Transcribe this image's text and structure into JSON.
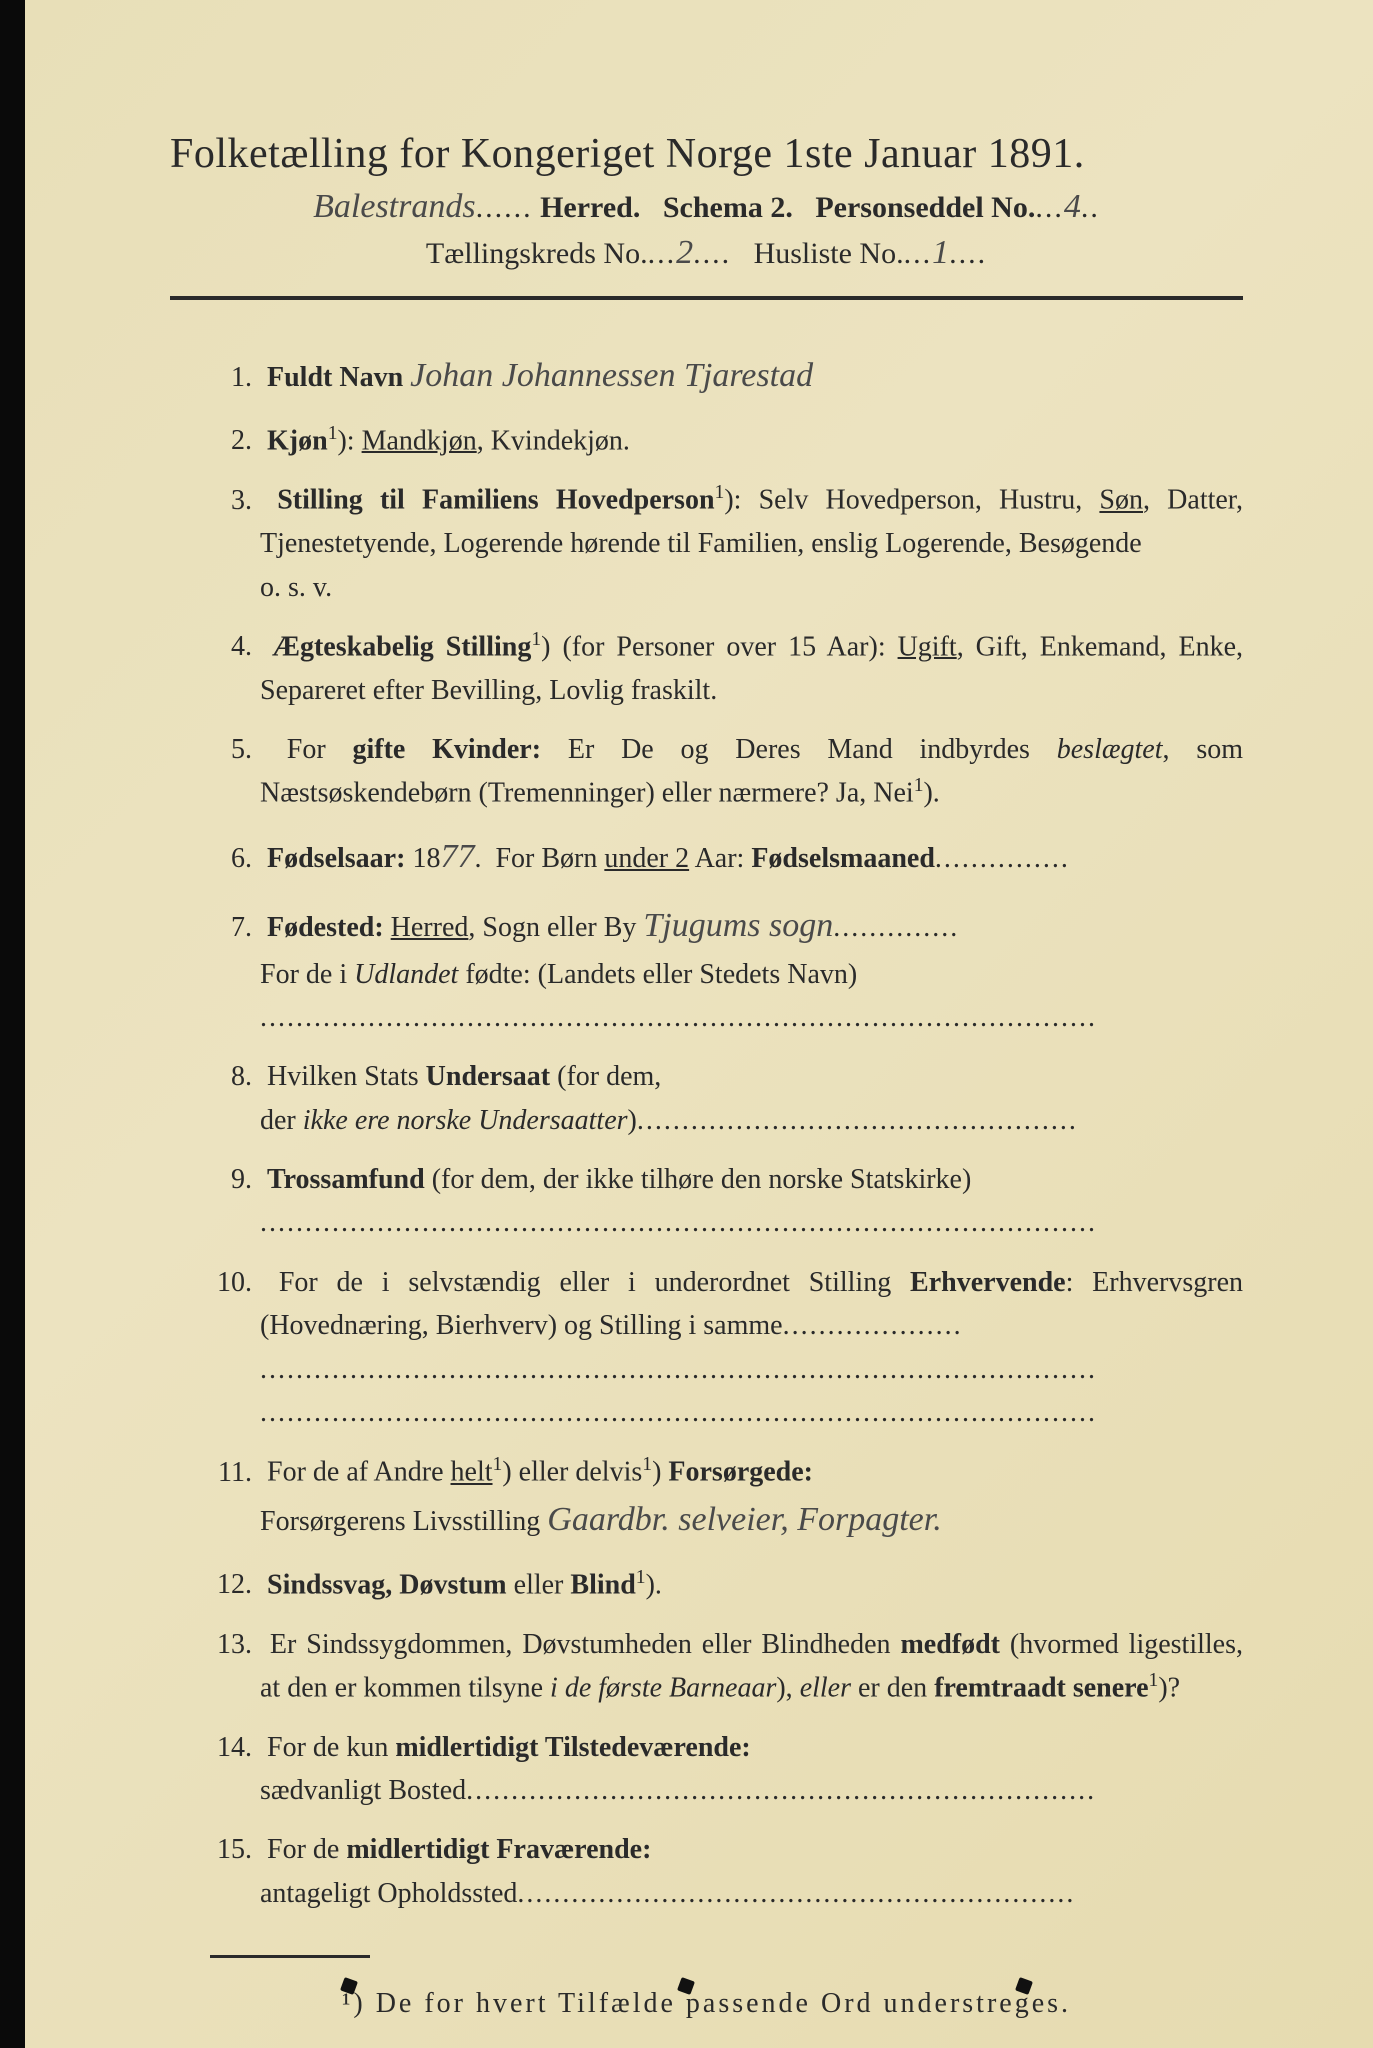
{
  "colors": {
    "paper": "#ece3c0",
    "ink": "#2a2a2a",
    "handwriting": "#4a4a4a",
    "edge": "#0a0a0a"
  },
  "header": {
    "title": "Folketælling for Kongeriget Norge 1ste Januar 1891.",
    "herred_handwritten": "Balestrands",
    "herred_label": "Herred.",
    "schema": "Schema 2.",
    "person_label": "Personseddel No.",
    "person_no": "4",
    "kreds_label": "Tællingskreds No.",
    "kreds_no": "2",
    "husliste_label": "Husliste No.",
    "husliste_no": "1"
  },
  "items": [
    {
      "n": "1.",
      "html": "<b>Fuldt Navn</b> <span class='cursive'>Johan Johannessen Tjarestad</span>"
    },
    {
      "n": "2.",
      "html": "<b>Kjøn</b><span class='sup'>1</span>): <span class='u'>Mandkjøn</span>, Kvindekjøn."
    },
    {
      "n": "3.",
      "html": "<b>Stilling til Familiens Hovedperson</b><span class='sup'>1</span>): Selv Hovedperson, Hustru, <span class='u'>Søn</span>, Datter, Tjenestetyende, Logerende hørende til Familien, enslig Logerende, Besøgende<br>o. s. v."
    },
    {
      "n": "4.",
      "html": "<b>Ægteskabelig Stilling</b><span class='sup'>1</span>) (for Personer over 15 Aar): <span class='u'>Ugift</span>, Gift, Enkemand, Enke, Separeret efter Bevilling, Lovlig fraskilt."
    },
    {
      "n": "5.",
      "html": "For <b>gifte Kvinder:</b> Er De og Deres Mand indbyrdes <i>beslægtet</i>, som Næstsøskendebørn (Tremenninger) eller nærmere? Ja, Nei<span class='sup'>1</span>)."
    },
    {
      "n": "6.",
      "html": "<b>Fødselsaar:</b> 18<span class='cursive'>77</span>. &nbsp;For Børn <span class='u'>under 2</span> Aar: <b>Fødselsmaaned</b><span class='dotfill'>...............</span>"
    },
    {
      "n": "7.",
      "html": "<b>Fødested:</b> <span class='u'>Herred</span>, Sogn eller By <span class='cursive'>Tjugums sogn</span><span class='dotfill'>..............</span><br>For de i <i>Udlandet</i> fødte: (Landets eller Stedets Navn)<br><span class='dotfill'>.............................................................................................</span>"
    },
    {
      "n": "8.",
      "html": "Hvilken Stats <b>Undersaat</b> (for dem,<br>der <i>ikke ere norske Undersaatter</i>)<span class='dotfill'>.................................................</span>"
    },
    {
      "n": "9.",
      "html": "<b>Trossamfund</b> (for dem, der ikke tilhøre den norske Statskirke)<br><span class='dotfill'>.............................................................................................</span>"
    },
    {
      "n": "10.",
      "html": "For de i selvstændig eller i underordnet Stilling <b>Erhvervende</b>: Erhvervsgren (Hovednæring, Bierhverv) og Stilling i samme<span class='dotfill'>....................</span><br><span class='dotfill'>.............................................................................................</span><br><span class='dotfill'>.............................................................................................</span>"
    },
    {
      "n": "11.",
      "html": "For de af Andre <span class='u'>helt</span><span class='sup'>1</span>) eller delvis<span class='sup'>1</span>) <b>Forsørgede:</b><br>Forsørgerens Livsstilling <span class='cursive'>Gaardbr. selveier, Forpagter.</span>"
    },
    {
      "n": "12.",
      "html": "<b>Sindssvag, Døvstum</b> eller <b>Blind</b><span class='sup'>1</span>)."
    },
    {
      "n": "13.",
      "html": "Er Sindssygdommen, Døvstumheden eller Blindheden <b>medfødt</b> (hvormed ligestilles, at den er kommen tilsyne <i>i de første Barneaar</i>), <i>eller</i> er den <b>fremtraadt senere</b><span class='sup'>1</span>)?"
    },
    {
      "n": "14.",
      "html": "For de kun <b>midlertidigt Tilstedeværende:</b><br>sædvanligt Bosted<span class='dotfill'>......................................................................</span>"
    },
    {
      "n": "15.",
      "html": "For de <b>midlertidigt Fraværende:</b><br>antageligt Opholdssted<span class='dotfill'>..............................................................</span>"
    }
  ],
  "footnote": "¹) De for hvert Tilfælde passende Ord understreges."
}
